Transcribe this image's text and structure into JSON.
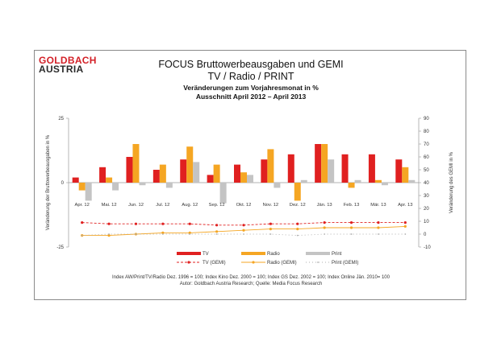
{
  "logo": {
    "line1": "GOLDBACH",
    "line2": "AUSTRIA"
  },
  "titles": {
    "main": "FOCUS Bruttowerbeausgaben und GEMI",
    "sub": "TV / Radio / PRINT",
    "line3": "Veränderungen zum Vorjahresmonat in %",
    "line4": "Ausschnitt April 2012 – April 2013"
  },
  "footnotes": {
    "index": "Index AW/Print/TV/Radio Dez. 1996 = 100; Index Kino Dez. 2000 = 100; Index GS Dez. 2002 = 100; Index Online Jän. 2010= 100",
    "source": "Autor: Goldbach Austria Research; Quelle: Media Focus Research"
  },
  "colors": {
    "tv": "#e02020",
    "radio": "#f5a623",
    "print": "#c4c4c4",
    "tv_gemi": "#e02020",
    "radio_gemi": "#f5a623",
    "print_gemi": "#b0b0b0"
  },
  "chart_data": {
    "type": "bar",
    "categories": [
      "Apr. 12",
      "Mai. 12",
      "Jun. 12",
      "Jul. 12",
      "Aug. 12",
      "Sep. 12",
      "Okt. 12",
      "Nov. 12",
      "Dez. 12",
      "Jän. 13",
      "Feb. 13",
      "Mär. 13",
      "Apr. 13"
    ],
    "series": [
      {
        "name": "TV",
        "kind": "bar",
        "values": [
          2,
          6,
          10,
          5,
          9,
          3,
          7,
          9,
          11,
          15,
          11,
          11,
          9
        ]
      },
      {
        "name": "Radio",
        "kind": "bar",
        "values": [
          -3,
          2,
          15,
          7,
          14,
          7,
          4,
          13,
          -7,
          15,
          -2,
          1,
          6
        ]
      },
      {
        "name": "Print",
        "kind": "bar",
        "values": [
          -7,
          -3,
          -1,
          -2,
          8,
          -8,
          3,
          -2,
          1,
          9,
          1,
          -1,
          1
        ]
      },
      {
        "name": "TV (GEMI)",
        "kind": "line",
        "axis": "right",
        "values": [
          9,
          8,
          8,
          8,
          8,
          7,
          7,
          8,
          8,
          9,
          9,
          9,
          9
        ]
      },
      {
        "name": "Radio (GEMI)",
        "kind": "line",
        "axis": "right",
        "values": [
          -1,
          -1,
          0,
          1,
          1,
          2,
          3,
          4,
          4,
          5,
          5,
          5,
          6
        ]
      },
      {
        "name": "Print (GEMI)",
        "kind": "line",
        "axis": "right",
        "values": [
          -1,
          0,
          0,
          0,
          0,
          0,
          0,
          0,
          -1,
          0,
          0,
          0,
          0
        ]
      }
    ],
    "ylim_left": [
      -25,
      25
    ],
    "yticks_left": [
      "25",
      "0",
      "-25"
    ],
    "ylim_right": [
      -10,
      90
    ],
    "yticks_right": [
      "90",
      "80",
      "70",
      "60",
      "50",
      "40",
      "30",
      "20",
      "10",
      "0",
      "-10"
    ],
    "ylabel_left": "Veränderung der Bruttowerbeausgaben in %",
    "ylabel_right": "Veränderung des GEMI in %",
    "legend": [
      "TV",
      "Radio",
      "Print",
      "TV (GEMI)",
      "Radio (GEMI)",
      "Print (GEMI)"
    ]
  }
}
